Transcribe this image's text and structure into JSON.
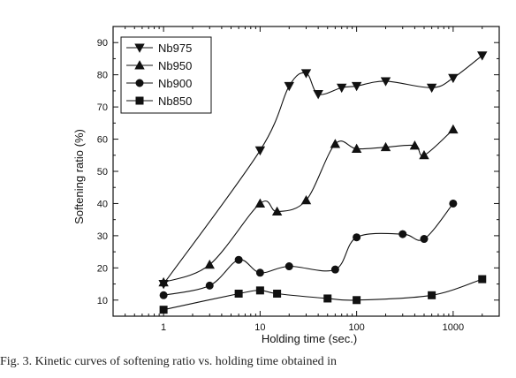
{
  "chart_data": {
    "type": "line",
    "title": "",
    "xlabel": "Holding time (sec.)",
    "ylabel": "Softening ratio (%)",
    "xscale": "log",
    "xlim": [
      0.3,
      3000
    ],
    "ylim": [
      5,
      95
    ],
    "xticks": [
      1,
      10,
      100,
      1000
    ],
    "yticks": [
      10,
      20,
      30,
      40,
      50,
      60,
      70,
      80,
      90
    ],
    "legend_position": "top-left",
    "series": [
      {
        "name": "Nb975",
        "marker": "triangle-down",
        "x": [
          1,
          10,
          20,
          30,
          40,
          70,
          100,
          200,
          600,
          1000,
          2000
        ],
        "y": [
          15,
          56.5,
          76.5,
          80.5,
          74,
          76,
          76.5,
          78,
          76,
          79,
          86
        ]
      },
      {
        "name": "Nb950",
        "marker": "triangle-up",
        "x": [
          1,
          3,
          10,
          15,
          30,
          60,
          100,
          200,
          400,
          500,
          1000
        ],
        "y": [
          15.5,
          21,
          40,
          37.5,
          41,
          58.5,
          57,
          57.5,
          58,
          55,
          63
        ]
      },
      {
        "name": "Nb900",
        "marker": "circle",
        "x": [
          1,
          3,
          6,
          10,
          20,
          60,
          100,
          300,
          500,
          1000
        ],
        "y": [
          11.5,
          14.5,
          22.5,
          18.5,
          20.5,
          19.5,
          29.5,
          30.5,
          29,
          40
        ]
      },
      {
        "name": "Nb850",
        "marker": "square",
        "x": [
          1,
          6,
          10,
          15,
          50,
          100,
          600,
          2000
        ],
        "y": [
          7,
          12,
          13,
          12,
          10.5,
          10,
          11.5,
          16.5
        ]
      }
    ]
  },
  "caption": "Fig. 3. Kinetic curves of softening ratio vs. holding time obtained in"
}
